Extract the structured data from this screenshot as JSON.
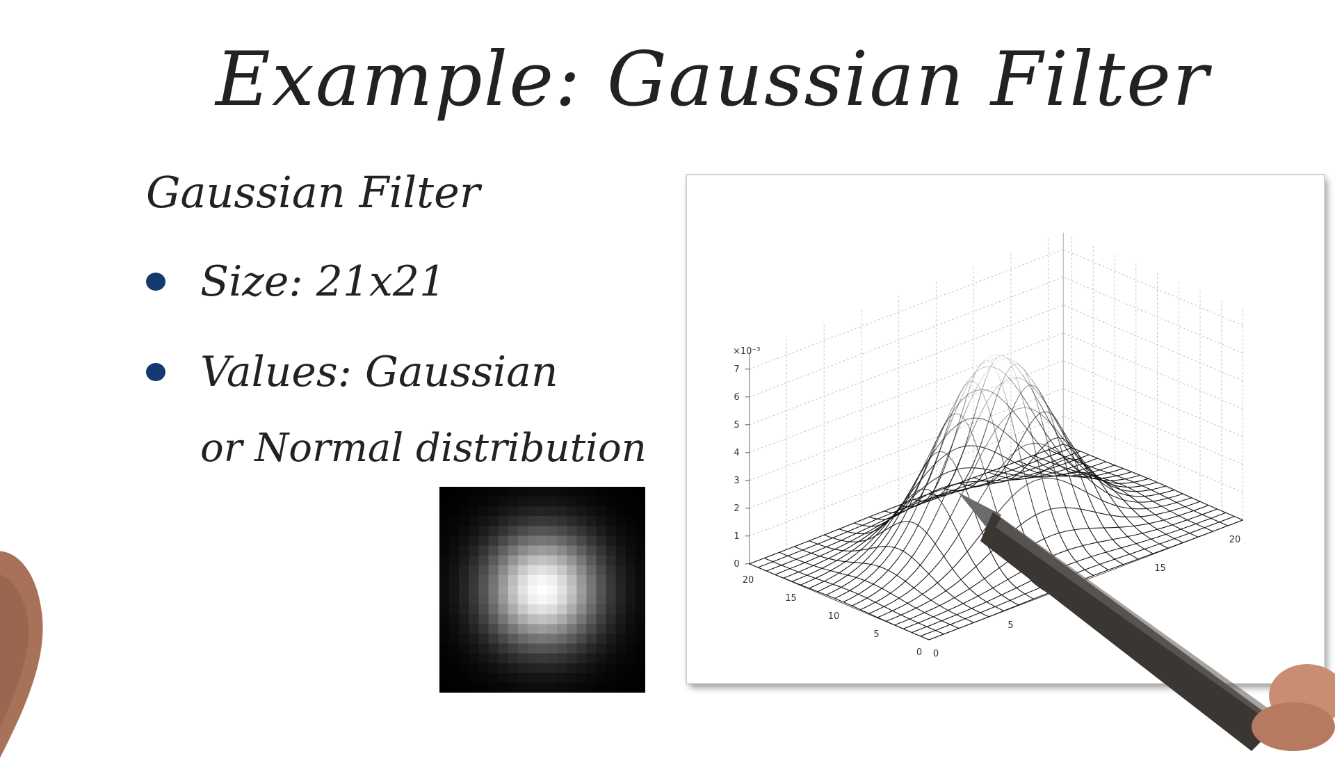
{
  "slide": {
    "title": "Example:  Gaussian Filter",
    "subtitle": "Gaussian Filter",
    "bullets": [
      {
        "text": "Size: 21x21"
      },
      {
        "text": "Values: Gaussian"
      }
    ],
    "bullet_continuation": "or Normal distribution",
    "bullet_color": "#123a6e"
  },
  "kernel_image": {
    "grid_size": 21,
    "icon": "gaussian-kernel-grayscale"
  },
  "chart_data": {
    "type": "surface",
    "grid_x": [
      0,
      21
    ],
    "grid_y": [
      0,
      21
    ],
    "z_scale_label": "×10⁻³",
    "z_ticks": [
      "0",
      "1",
      "2",
      "3",
      "4",
      "5",
      "6",
      "7"
    ],
    "x_ticks": [
      "0",
      "5",
      "10",
      "15",
      "20"
    ],
    "y_ticks": [
      "0",
      "5",
      "10",
      "15",
      "20"
    ],
    "zlim": [
      0,
      7
    ],
    "grid": true
  }
}
